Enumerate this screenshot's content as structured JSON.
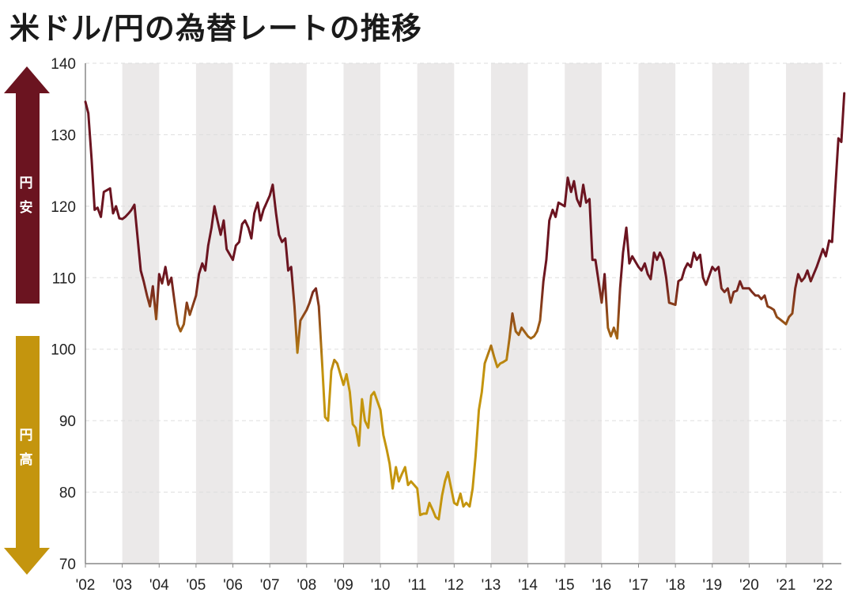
{
  "title": "米ドル/円の為替レートの推移",
  "legend": {
    "up_label": "円安",
    "down_label": "円高"
  },
  "colors": {
    "yen_weak": "#6b1420",
    "yen_strong": "#c4950e",
    "band": "#ebe9e9",
    "grid": "#dddddd"
  },
  "chart_data": {
    "type": "line",
    "title": "米ドル/円の為替レートの推移",
    "xlabel": "",
    "ylabel": "",
    "ylim": [
      70,
      140
    ],
    "yticks": [
      70,
      80,
      90,
      100,
      110,
      120,
      130,
      140
    ],
    "xlim": [
      2002.0,
      2022.5
    ],
    "xticks": [
      "'02",
      "'03",
      "'04",
      "'05",
      "'06",
      "'07",
      "'08",
      "'09",
      "'10",
      "'11",
      "'12",
      "'13",
      "'14",
      "'15",
      "'16",
      "'17",
      "'18",
      "'19",
      "'20",
      "'21",
      "'22"
    ],
    "grid": "horizontal dashed",
    "color_encoding": "dark red above 100, gold below 100",
    "series": [
      {
        "values": [
          [
            2002.0,
            134.6
          ],
          [
            2002.08,
            133.0
          ],
          [
            2002.17,
            126.5
          ],
          [
            2002.25,
            119.5
          ],
          [
            2002.33,
            119.8
          ],
          [
            2002.42,
            118.5
          ],
          [
            2002.5,
            122.0
          ],
          [
            2002.67,
            122.5
          ],
          [
            2002.75,
            119.0
          ],
          [
            2002.83,
            120.0
          ],
          [
            2002.92,
            118.3
          ],
          [
            2003.0,
            118.2
          ],
          [
            2003.08,
            118.5
          ],
          [
            2003.17,
            119.0
          ],
          [
            2003.25,
            119.5
          ],
          [
            2003.33,
            120.2
          ],
          [
            2003.5,
            111.0
          ],
          [
            2003.58,
            109.5
          ],
          [
            2003.67,
            107.5
          ],
          [
            2003.75,
            106.0
          ],
          [
            2003.83,
            108.8
          ],
          [
            2003.92,
            104.2
          ],
          [
            2004.0,
            110.5
          ],
          [
            2004.08,
            109.2
          ],
          [
            2004.17,
            111.5
          ],
          [
            2004.25,
            109.0
          ],
          [
            2004.33,
            110.0
          ],
          [
            2004.42,
            106.5
          ],
          [
            2004.5,
            103.5
          ],
          [
            2004.58,
            102.5
          ],
          [
            2004.67,
            103.5
          ],
          [
            2004.75,
            106.5
          ],
          [
            2004.83,
            104.8
          ],
          [
            2005.0,
            107.5
          ],
          [
            2005.08,
            110.5
          ],
          [
            2005.17,
            112.0
          ],
          [
            2005.25,
            111.0
          ],
          [
            2005.33,
            114.5
          ],
          [
            2005.42,
            117.0
          ],
          [
            2005.5,
            120.0
          ],
          [
            2005.58,
            118.0
          ],
          [
            2005.67,
            116.0
          ],
          [
            2005.75,
            118.0
          ],
          [
            2005.83,
            114.0
          ],
          [
            2006.0,
            112.5
          ],
          [
            2006.08,
            114.5
          ],
          [
            2006.17,
            115.0
          ],
          [
            2006.25,
            117.5
          ],
          [
            2006.33,
            118.0
          ],
          [
            2006.42,
            117.0
          ],
          [
            2006.5,
            115.5
          ],
          [
            2006.58,
            119.0
          ],
          [
            2006.67,
            120.5
          ],
          [
            2006.75,
            118.0
          ],
          [
            2006.83,
            119.5
          ],
          [
            2007.0,
            121.5
          ],
          [
            2007.08,
            123.0
          ],
          [
            2007.17,
            119.0
          ],
          [
            2007.25,
            116.0
          ],
          [
            2007.33,
            115.0
          ],
          [
            2007.42,
            115.5
          ],
          [
            2007.5,
            111.0
          ],
          [
            2007.58,
            111.5
          ],
          [
            2007.67,
            106.0
          ],
          [
            2007.75,
            99.5
          ],
          [
            2007.83,
            104.0
          ],
          [
            2008.0,
            105.5
          ],
          [
            2008.08,
            106.5
          ],
          [
            2008.17,
            108.0
          ],
          [
            2008.25,
            108.5
          ],
          [
            2008.33,
            106.0
          ],
          [
            2008.42,
            98.0
          ],
          [
            2008.5,
            90.5
          ],
          [
            2008.58,
            90.0
          ],
          [
            2008.67,
            97.0
          ],
          [
            2008.75,
            98.5
          ],
          [
            2008.83,
            98.0
          ],
          [
            2009.0,
            95.0
          ],
          [
            2009.08,
            96.5
          ],
          [
            2009.17,
            94.0
          ],
          [
            2009.25,
            89.5
          ],
          [
            2009.33,
            89.0
          ],
          [
            2009.42,
            86.5
          ],
          [
            2009.5,
            93.0
          ],
          [
            2009.58,
            90.0
          ],
          [
            2009.67,
            89.0
          ],
          [
            2009.75,
            93.5
          ],
          [
            2009.83,
            94.0
          ],
          [
            2010.0,
            91.5
          ],
          [
            2010.08,
            88.0
          ],
          [
            2010.17,
            86.0
          ],
          [
            2010.25,
            84.0
          ],
          [
            2010.33,
            80.5
          ],
          [
            2010.42,
            83.5
          ],
          [
            2010.5,
            81.5
          ],
          [
            2010.58,
            82.5
          ],
          [
            2010.67,
            83.5
          ],
          [
            2010.75,
            81.0
          ],
          [
            2010.83,
            81.5
          ],
          [
            2011.0,
            80.5
          ],
          [
            2011.08,
            76.8
          ],
          [
            2011.17,
            77.0
          ],
          [
            2011.25,
            77.0
          ],
          [
            2011.33,
            78.5
          ],
          [
            2011.42,
            77.5
          ],
          [
            2011.5,
            76.5
          ],
          [
            2011.58,
            76.2
          ],
          [
            2011.67,
            79.5
          ],
          [
            2011.75,
            81.5
          ],
          [
            2011.83,
            82.8
          ],
          [
            2012.0,
            78.5
          ],
          [
            2012.08,
            78.2
          ],
          [
            2012.17,
            79.8
          ],
          [
            2012.25,
            78.0
          ],
          [
            2012.33,
            78.5
          ],
          [
            2012.42,
            78.0
          ],
          [
            2012.5,
            80.5
          ],
          [
            2012.58,
            85.0
          ],
          [
            2012.67,
            91.5
          ],
          [
            2012.75,
            94.0
          ],
          [
            2012.83,
            98.0
          ],
          [
            2013.0,
            100.5
          ],
          [
            2013.08,
            99.0
          ],
          [
            2013.17,
            97.5
          ],
          [
            2013.25,
            98.0
          ],
          [
            2013.33,
            98.2
          ],
          [
            2013.42,
            98.5
          ],
          [
            2013.5,
            101.5
          ],
          [
            2013.58,
            105.0
          ],
          [
            2013.67,
            102.5
          ],
          [
            2013.75,
            102.0
          ],
          [
            2013.83,
            103.0
          ],
          [
            2014.0,
            101.8
          ],
          [
            2014.08,
            101.5
          ],
          [
            2014.17,
            101.8
          ],
          [
            2014.25,
            102.5
          ],
          [
            2014.33,
            104.0
          ],
          [
            2014.42,
            109.5
          ],
          [
            2014.5,
            112.5
          ],
          [
            2014.58,
            118.0
          ],
          [
            2014.67,
            119.5
          ],
          [
            2014.75,
            118.5
          ],
          [
            2014.83,
            120.5
          ],
          [
            2015.0,
            120.0
          ],
          [
            2015.08,
            124.0
          ],
          [
            2015.17,
            122.0
          ],
          [
            2015.25,
            123.5
          ],
          [
            2015.33,
            121.0
          ],
          [
            2015.42,
            120.0
          ],
          [
            2015.5,
            123.0
          ],
          [
            2015.58,
            120.5
          ],
          [
            2015.67,
            121.0
          ],
          [
            2015.75,
            112.5
          ],
          [
            2015.83,
            112.5
          ],
          [
            2016.0,
            106.5
          ],
          [
            2016.08,
            110.5
          ],
          [
            2016.17,
            103.0
          ],
          [
            2016.25,
            101.8
          ],
          [
            2016.33,
            103.0
          ],
          [
            2016.42,
            101.5
          ],
          [
            2016.5,
            108.5
          ],
          [
            2016.58,
            113.5
          ],
          [
            2016.67,
            117.0
          ],
          [
            2016.75,
            112.0
          ],
          [
            2016.83,
            113.0
          ],
          [
            2017.0,
            111.5
          ],
          [
            2017.08,
            111.0
          ],
          [
            2017.17,
            112.0
          ],
          [
            2017.25,
            110.5
          ],
          [
            2017.33,
            109.8
          ],
          [
            2017.42,
            113.5
          ],
          [
            2017.5,
            112.5
          ],
          [
            2017.58,
            113.5
          ],
          [
            2017.67,
            112.5
          ],
          [
            2017.75,
            110.0
          ],
          [
            2017.83,
            106.5
          ],
          [
            2018.0,
            106.2
          ],
          [
            2018.08,
            109.5
          ],
          [
            2018.17,
            109.8
          ],
          [
            2018.25,
            111.2
          ],
          [
            2018.33,
            112.0
          ],
          [
            2018.42,
            111.5
          ],
          [
            2018.5,
            113.5
          ],
          [
            2018.58,
            112.5
          ],
          [
            2018.67,
            113.2
          ],
          [
            2018.75,
            110.0
          ],
          [
            2018.83,
            109.0
          ],
          [
            2019.0,
            111.5
          ],
          [
            2019.08,
            111.0
          ],
          [
            2019.17,
            111.5
          ],
          [
            2019.25,
            108.5
          ],
          [
            2019.33,
            108.0
          ],
          [
            2019.42,
            108.5
          ],
          [
            2019.5,
            106.5
          ],
          [
            2019.58,
            108.0
          ],
          [
            2019.67,
            108.2
          ],
          [
            2019.75,
            109.5
          ],
          [
            2019.83,
            108.5
          ],
          [
            2020.0,
            108.5
          ],
          [
            2020.08,
            108.0
          ],
          [
            2020.17,
            107.5
          ],
          [
            2020.25,
            107.5
          ],
          [
            2020.33,
            107.0
          ],
          [
            2020.42,
            107.5
          ],
          [
            2020.5,
            106.0
          ],
          [
            2020.58,
            105.8
          ],
          [
            2020.67,
            105.5
          ],
          [
            2020.75,
            104.5
          ],
          [
            2020.83,
            104.2
          ],
          [
            2021.0,
            103.5
          ],
          [
            2021.08,
            104.5
          ],
          [
            2021.17,
            105.0
          ],
          [
            2021.25,
            108.5
          ],
          [
            2021.33,
            110.5
          ],
          [
            2021.42,
            109.5
          ],
          [
            2021.5,
            110.0
          ],
          [
            2021.58,
            111.0
          ],
          [
            2021.67,
            109.5
          ],
          [
            2021.75,
            110.5
          ],
          [
            2021.83,
            111.5
          ],
          [
            2022.0,
            114.0
          ],
          [
            2022.08,
            113.0
          ],
          [
            2022.17,
            115.2
          ],
          [
            2022.25,
            115.0
          ],
          [
            2022.33,
            122.0
          ],
          [
            2022.42,
            129.5
          ],
          [
            2022.5,
            129.0
          ],
          [
            2022.58,
            135.8
          ]
        ]
      }
    ]
  }
}
